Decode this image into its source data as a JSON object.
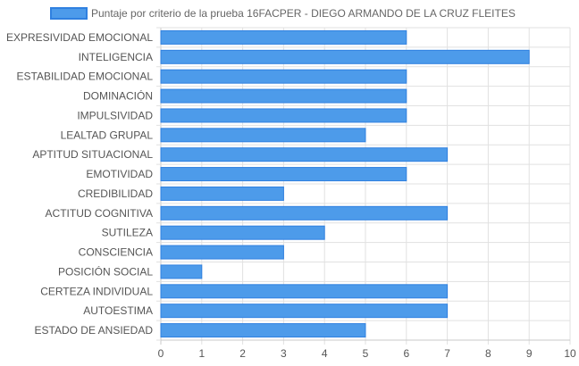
{
  "chart_data": {
    "type": "bar",
    "orientation": "horizontal",
    "title": "",
    "xlabel": "",
    "ylabel": "",
    "xlim": [
      0,
      10
    ],
    "xticks": [
      0,
      1,
      2,
      3,
      4,
      5,
      6,
      7,
      8,
      9,
      10
    ],
    "grid": true,
    "legend_position": "top",
    "categories": [
      "EXPRESIVIDAD EMOCIONAL",
      "INTELIGENCIA",
      "ESTABILIDAD EMOCIONAL",
      "DOMINACIÓN",
      "IMPULSIVIDAD",
      "LEALTAD GRUPAL",
      "APTITUD SITUACIONAL",
      "EMOTIVIDAD",
      "CREDIBILIDAD",
      "ACTITUD COGNITIVA",
      "SUTILEZA",
      "CONSCIENCIA",
      "POSICIÓN SOCIAL",
      "CERTEZA INDIVIDUAL",
      "AUTOESTIMA",
      "ESTADO DE ANSIEDAD"
    ],
    "series": [
      {
        "name": "Puntaje por criterio de la prueba 16FACPER - DIEGO ARMANDO DE LA CRUZ FLEITES",
        "values": [
          6,
          9,
          6,
          6,
          6,
          5,
          7,
          6,
          3,
          7,
          4,
          3,
          1,
          7,
          7,
          5
        ],
        "color": "#4d9bea",
        "border_color": "#2f80e0"
      }
    ]
  }
}
